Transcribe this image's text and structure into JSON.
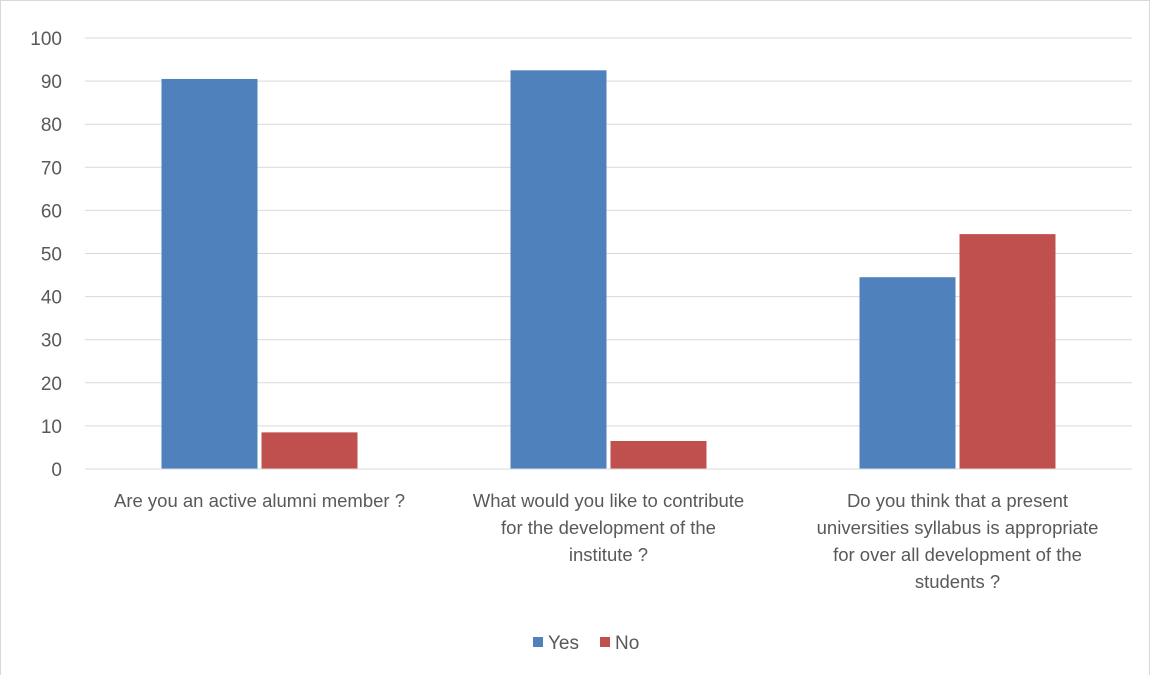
{
  "chart_data": {
    "type": "bar",
    "categories": [
      [
        "Are you an active alumni member ?"
      ],
      [
        "What would you like to contribute",
        "for the development of the",
        "institute ?"
      ],
      [
        "Do you think that a present",
        "universities syllabus is appropriate",
        "for over all development of the",
        "students ?"
      ]
    ],
    "series": [
      {
        "name": "Yes",
        "color": "#4f81bd",
        "values": [
          90.5,
          92.5,
          44.5
        ]
      },
      {
        "name": "No",
        "color": "#c0504d",
        "values": [
          8.5,
          6.5,
          54.5
        ]
      }
    ],
    "ylim": [
      0,
      100
    ],
    "yticks": [
      "0",
      "10",
      "20",
      "30",
      "40",
      "50",
      "60",
      "70",
      "80",
      "90",
      "100"
    ],
    "grid": true,
    "legend_position": "bottom"
  }
}
